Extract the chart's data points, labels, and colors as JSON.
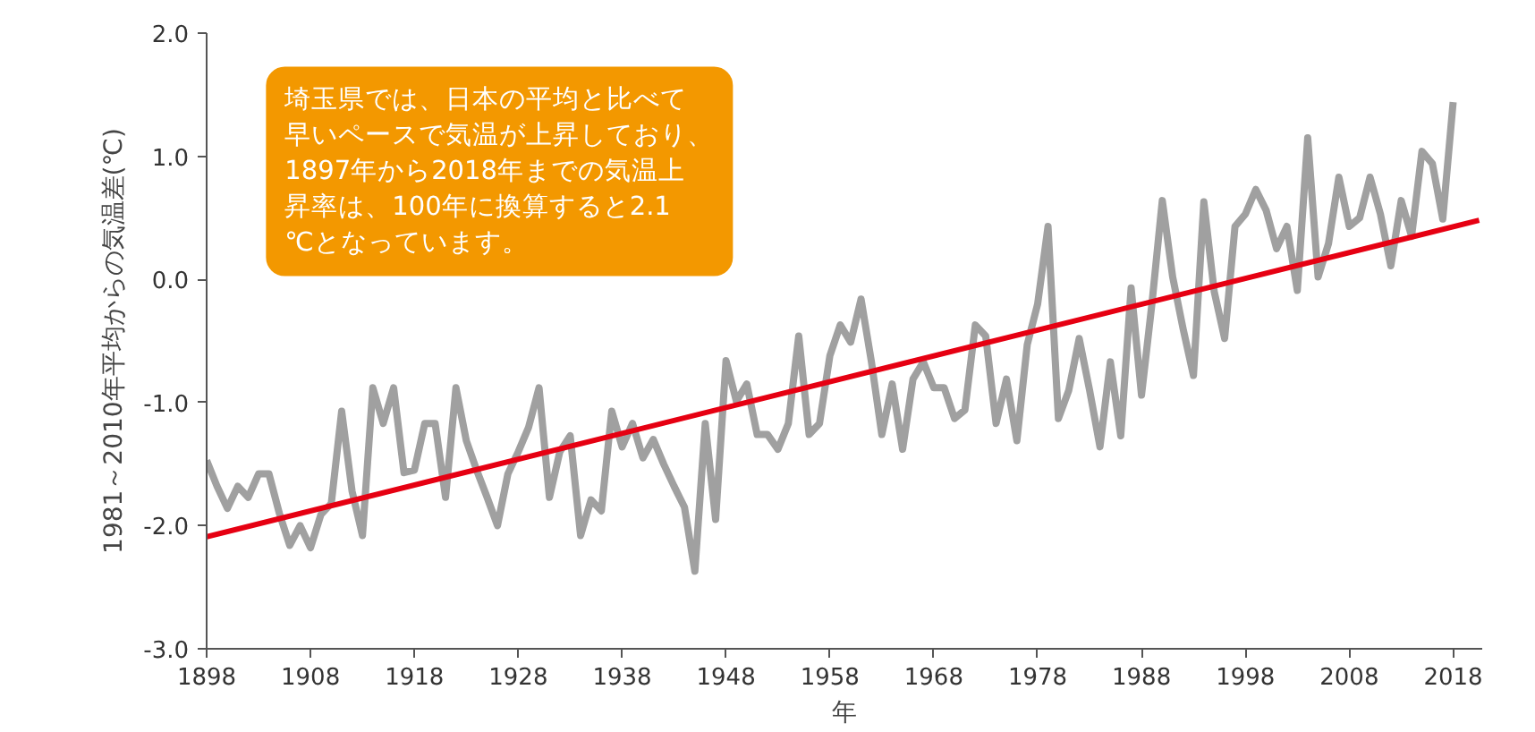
{
  "chart_data": {
    "type": "line",
    "xlabel": "年",
    "ylabel": "1981～2010年平均からの気温差(℃)",
    "x": [
      1898,
      1899,
      1900,
      1901,
      1902,
      1903,
      1904,
      1905,
      1906,
      1907,
      1908,
      1909,
      1910,
      1911,
      1912,
      1913,
      1914,
      1915,
      1916,
      1917,
      1918,
      1919,
      1920,
      1921,
      1922,
      1923,
      1924,
      1925,
      1926,
      1927,
      1928,
      1929,
      1930,
      1931,
      1932,
      1933,
      1934,
      1935,
      1936,
      1937,
      1938,
      1939,
      1940,
      1941,
      1942,
      1943,
      1944,
      1945,
      1946,
      1947,
      1948,
      1949,
      1950,
      1951,
      1952,
      1953,
      1954,
      1955,
      1956,
      1957,
      1958,
      1959,
      1960,
      1961,
      1962,
      1963,
      1964,
      1965,
      1966,
      1967,
      1968,
      1969,
      1970,
      1971,
      1972,
      1973,
      1974,
      1975,
      1976,
      1977,
      1978,
      1979,
      1980,
      1981,
      1982,
      1983,
      1984,
      1985,
      1986,
      1987,
      1988,
      1989,
      1990,
      1991,
      1992,
      1993,
      1994,
      1995,
      1996,
      1997,
      1998,
      1999,
      2000,
      2001,
      2002,
      2003,
      2004,
      2005,
      2006,
      2007,
      2008,
      2009,
      2010,
      2011,
      2012,
      2013,
      2014,
      2015,
      2016,
      2017,
      2018
    ],
    "series": [
      {
        "color": "#a0a0a0",
        "values": [
          -1.47,
          -1.68,
          -1.86,
          -1.68,
          -1.77,
          -1.58,
          -1.58,
          -1.9,
          -2.16,
          -2.0,
          -2.18,
          -1.91,
          -1.82,
          -1.07,
          -1.72,
          -2.08,
          -0.88,
          -1.17,
          -0.88,
          -1.57,
          -1.55,
          -1.17,
          -1.17,
          -1.77,
          -0.88,
          -1.31,
          -1.55,
          -1.77,
          -2.0,
          -1.58,
          -1.4,
          -1.2,
          -0.88,
          -1.77,
          -1.4,
          -1.27,
          -2.08,
          -1.79,
          -1.88,
          -1.07,
          -1.36,
          -1.17,
          -1.45,
          -1.3,
          -1.5,
          -1.68,
          -1.85,
          -2.37,
          -1.17,
          -1.95,
          -0.66,
          -0.99,
          -0.85,
          -1.26,
          -1.26,
          -1.38,
          -1.17,
          -0.46,
          -1.26,
          -1.17,
          -0.62,
          -0.37,
          -0.51,
          -0.16,
          -0.67,
          -1.26,
          -0.85,
          -1.38,
          -0.81,
          -0.67,
          -0.88,
          -0.88,
          -1.13,
          -1.06,
          -0.37,
          -0.46,
          -1.17,
          -0.81,
          -1.31,
          -0.53,
          -0.2,
          0.43,
          -1.13,
          -0.9,
          -0.48,
          -0.9,
          -1.36,
          -0.67,
          -1.27,
          -0.07,
          -0.94,
          -0.2,
          0.64,
          0.02,
          -0.4,
          -0.78,
          0.63,
          -0.1,
          -0.48,
          0.43,
          0.53,
          0.73,
          0.56,
          0.25,
          0.43,
          -0.09,
          1.15,
          0.02,
          0.29,
          0.83,
          0.43,
          0.5,
          0.83,
          0.53,
          0.11,
          0.64,
          0.35,
          1.04,
          0.94,
          0.49,
          1.44
        ]
      },
      {
        "color": "#e60012",
        "x": [
          1898,
          2020.5
        ],
        "values": [
          -2.09,
          0.48
        ]
      }
    ],
    "xlim": [
      1898,
      2020.8
    ],
    "xticks": [
      1898,
      1908,
      1918,
      1928,
      1938,
      1948,
      1958,
      1968,
      1978,
      1988,
      1998,
      2008,
      2018
    ],
    "ylim": [
      -3,
      2
    ],
    "yticks": [
      {
        "value": 2,
        "label": "2.0"
      },
      {
        "value": 1,
        "label": "1.0"
      },
      {
        "value": 0,
        "label": "0.0"
      },
      {
        "value": -1,
        "label": "-1.0"
      },
      {
        "value": -2,
        "label": "-2.0"
      },
      {
        "value": -3,
        "label": "-3.0"
      }
    ],
    "grid": false,
    "line_style": "solid",
    "annotations": [
      "埼玉県では、日本の平均と比べて早いペースで気温が上昇しており、1897年から2018年までの気温上昇率は、100年に換算すると2.1℃となっています。"
    ]
  }
}
